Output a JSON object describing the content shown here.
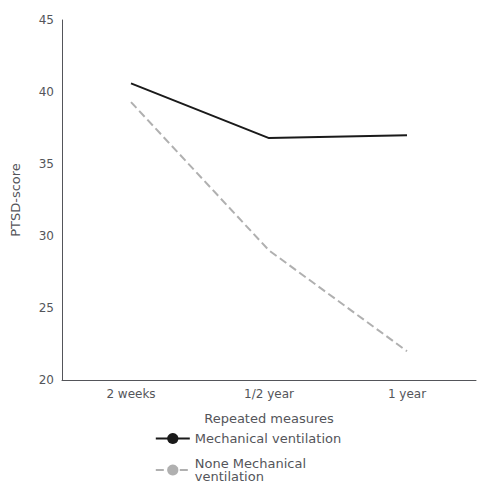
{
  "chart_data": {
    "type": "line",
    "xlabel": "Repeated measures",
    "ylabel": "PTSD-score",
    "categories": [
      "2 weeks",
      "1/2 year",
      "1 year"
    ],
    "series": [
      {
        "name": "Mechanical ventilation",
        "color": "#1a1a1a",
        "line_style": "solid",
        "values": [
          40.6,
          36.8,
          37.0
        ]
      },
      {
        "name": "None Mechanical\nventilation",
        "color": "#b0b0b0",
        "line_style": "dashed",
        "values": [
          39.3,
          29.0,
          22.0
        ]
      }
    ],
    "ylim": [
      20,
      45
    ],
    "yticks": [
      20,
      25,
      30,
      35,
      40,
      45
    ],
    "grid": false,
    "legend": "bottom"
  }
}
